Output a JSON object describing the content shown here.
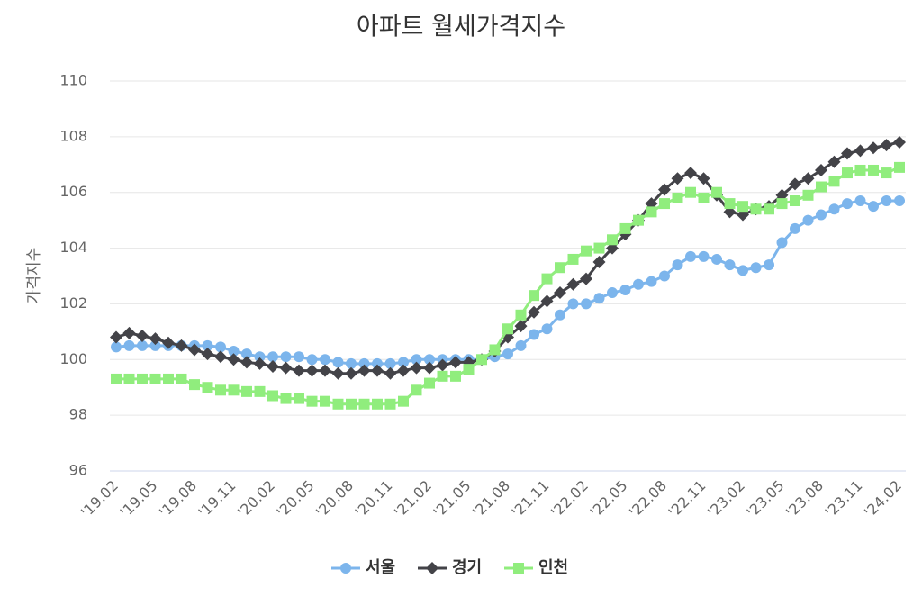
{
  "chart_data": {
    "type": "line",
    "title": "아파트 월세가격지수",
    "y_label": "가격지수",
    "categories": [
      "'19.02",
      null,
      null,
      "'19.05",
      null,
      null,
      "'19.08",
      null,
      null,
      "'19.11",
      null,
      null,
      "'20.02",
      null,
      null,
      "'20.05",
      null,
      null,
      "'20.08",
      null,
      null,
      "'20.11",
      null,
      null,
      "'21.02",
      null,
      null,
      "'21.05",
      null,
      null,
      "'21.08",
      null,
      null,
      "'21.11",
      null,
      null,
      "'22.02",
      null,
      null,
      "'22.05",
      null,
      null,
      "'22.08",
      null,
      null,
      "'22.11",
      null,
      null,
      "'23.02",
      null,
      null,
      "'23.05",
      null,
      null,
      "'23.08",
      null,
      null,
      "'23.11",
      null,
      null,
      "'24.02"
    ],
    "series": [
      {
        "name": "서울",
        "color": "#7cb5ec",
        "marker": "circle",
        "values": [
          100.45,
          100.5,
          100.5,
          100.5,
          100.5,
          100.5,
          100.5,
          100.5,
          100.45,
          100.3,
          100.2,
          100.1,
          100.1,
          100.1,
          100.1,
          100.0,
          100.0,
          99.9,
          99.85,
          99.85,
          99.85,
          99.85,
          99.9,
          100.0,
          100.0,
          100.0,
          100.0,
          100.0,
          100.0,
          100.1,
          100.2,
          100.5,
          100.9,
          101.1,
          101.6,
          102.0,
          102.0,
          102.2,
          102.4,
          102.5,
          102.7,
          102.8,
          103.0,
          103.4,
          103.7,
          103.7,
          103.6,
          103.4,
          103.2,
          103.3,
          103.4,
          104.2,
          104.7,
          105.0,
          105.2,
          105.4,
          105.6,
          105.7,
          105.5,
          105.7,
          105.7
        ]
      },
      {
        "name": "경기",
        "color": "#434348",
        "marker": "diamond",
        "values": [
          100.8,
          100.95,
          100.85,
          100.75,
          100.6,
          100.5,
          100.35,
          100.2,
          100.1,
          100.0,
          99.9,
          99.85,
          99.75,
          99.7,
          99.6,
          99.6,
          99.6,
          99.5,
          99.5,
          99.6,
          99.6,
          99.5,
          99.6,
          99.7,
          99.7,
          99.8,
          99.9,
          99.9,
          100.0,
          100.3,
          100.8,
          101.2,
          101.7,
          102.1,
          102.4,
          102.7,
          102.9,
          103.5,
          104.0,
          104.5,
          105.0,
          105.6,
          106.1,
          106.5,
          106.7,
          106.5,
          105.9,
          105.3,
          105.2,
          105.4,
          105.5,
          105.9,
          106.3,
          106.5,
          106.8,
          107.1,
          107.4,
          107.5,
          107.6,
          107.7,
          107.8
        ]
      },
      {
        "name": "인천",
        "color": "#90ed7d",
        "marker": "square",
        "values": [
          99.3,
          99.3,
          99.3,
          99.3,
          99.3,
          99.3,
          99.1,
          99.0,
          98.9,
          98.9,
          98.85,
          98.85,
          98.7,
          98.6,
          98.6,
          98.5,
          98.5,
          98.4,
          98.4,
          98.4,
          98.4,
          98.4,
          98.5,
          98.9,
          99.15,
          99.4,
          99.4,
          99.65,
          100.0,
          100.35,
          101.1,
          101.6,
          102.3,
          102.9,
          103.3,
          103.6,
          103.9,
          104.0,
          104.3,
          104.7,
          105.0,
          105.3,
          105.6,
          105.8,
          106.0,
          105.8,
          106.0,
          105.6,
          105.5,
          105.4,
          105.4,
          105.6,
          105.7,
          105.9,
          106.2,
          106.4,
          106.7,
          106.8,
          106.8,
          106.7,
          106.9
        ]
      }
    ],
    "ylim": [
      96,
      110
    ],
    "yticks": [
      96,
      98,
      100,
      102,
      104,
      106,
      108,
      110
    ],
    "grid": true
  }
}
